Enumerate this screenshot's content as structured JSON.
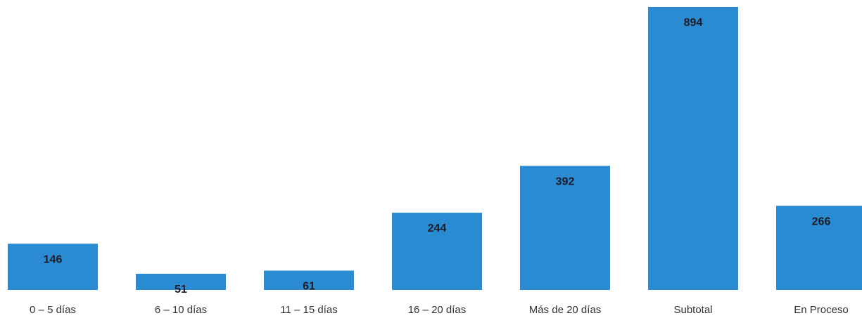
{
  "chart_data": {
    "type": "bar",
    "categories": [
      "0 – 5 días",
      "6 – 10 días",
      "11 – 15 días",
      "16 – 20 días",
      "Más de 20 días",
      "Subtotal",
      "En Proceso"
    ],
    "values": [
      146,
      51,
      61,
      244,
      392,
      894,
      266
    ],
    "color": "#2b8bd2"
  }
}
